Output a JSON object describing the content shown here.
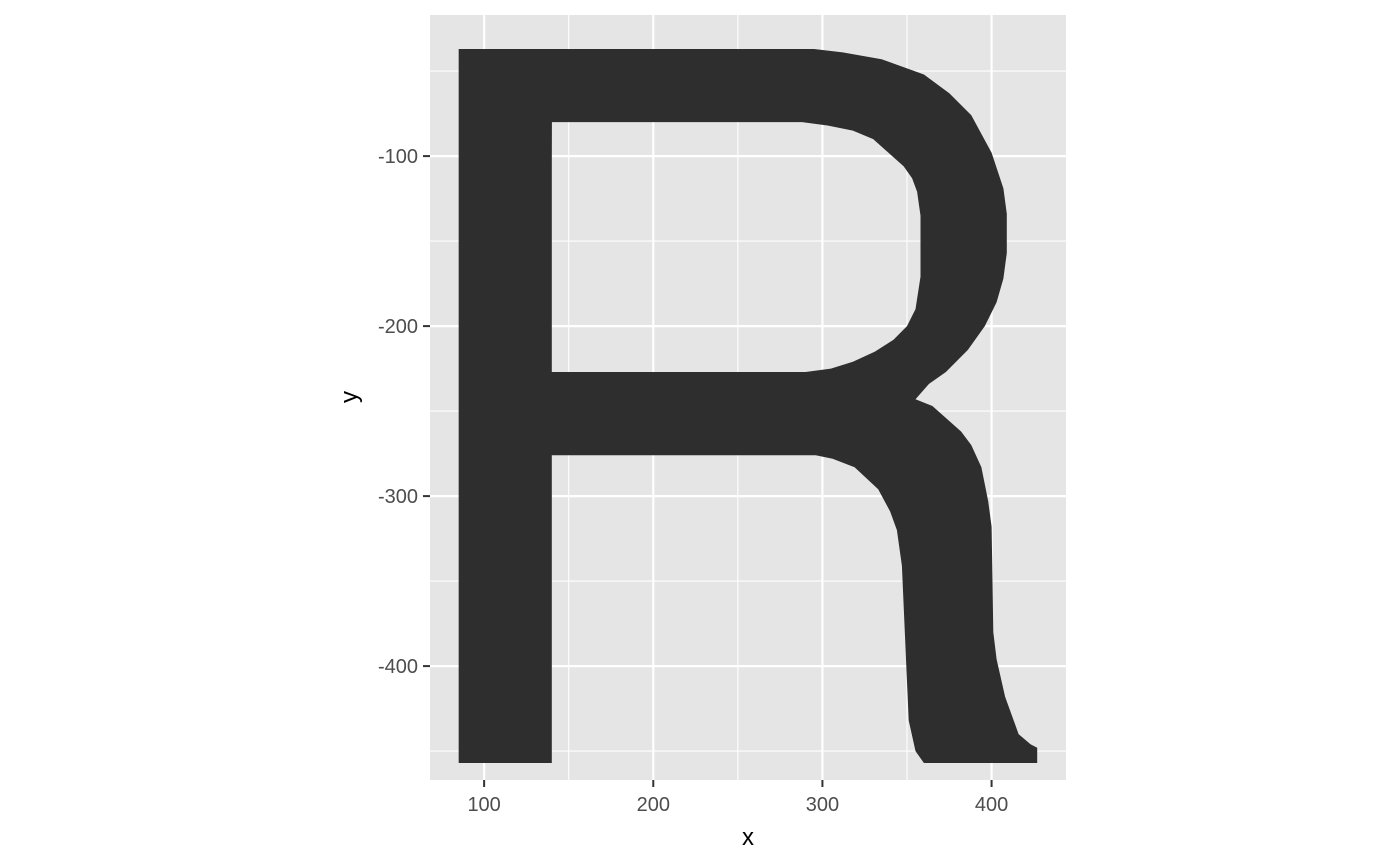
{
  "chart_data": {
    "type": "polygon",
    "xlabel": "x",
    "ylabel": "y",
    "xlim": [
      68,
      444
    ],
    "ylim": [
      -467,
      -17
    ],
    "x_ticks": [
      100,
      200,
      300,
      400
    ],
    "x_tick_labels": [
      "100",
      "200",
      "300",
      "400"
    ],
    "y_ticks": [
      -100,
      -200,
      -300,
      -400
    ],
    "y_tick_labels": [
      "-100",
      "-200",
      "-300",
      "-400"
    ],
    "grid": true,
    "legend": "none",
    "colors": {
      "panel_background": "#e5e5e5",
      "grid_line": "#ffffff",
      "fill": "#2e2e2e",
      "tick_text": "#4d4d4d",
      "tick_mark": "#333333"
    },
    "outer_polygon": [
      [
        85,
        -37
      ],
      [
        295,
        -37
      ],
      [
        312,
        -39
      ],
      [
        335,
        -43
      ],
      [
        360,
        -52
      ],
      [
        375,
        -63
      ],
      [
        388,
        -76
      ],
      [
        400,
        -98
      ],
      [
        407,
        -119
      ],
      [
        409,
        -134
      ],
      [
        409,
        -157
      ],
      [
        407,
        -172
      ],
      [
        403,
        -186
      ],
      [
        396,
        -200
      ],
      [
        386,
        -214
      ],
      [
        373,
        -227
      ],
      [
        363,
        -234
      ],
      [
        355,
        -243
      ],
      [
        365,
        -247
      ],
      [
        382,
        -262
      ],
      [
        388,
        -270
      ],
      [
        394,
        -283
      ],
      [
        398,
        -303
      ],
      [
        400,
        -318
      ],
      [
        401,
        -380
      ],
      [
        403,
        -396
      ],
      [
        408,
        -418
      ],
      [
        416,
        -440
      ],
      [
        423,
        -446
      ],
      [
        427,
        -448
      ],
      [
        427,
        -457
      ],
      [
        360,
        -457
      ],
      [
        355,
        -450
      ],
      [
        351,
        -432
      ],
      [
        347,
        -341
      ],
      [
        344,
        -320
      ],
      [
        340,
        -309
      ],
      [
        333,
        -296
      ],
      [
        319,
        -283
      ],
      [
        306,
        -278
      ],
      [
        296,
        -276
      ],
      [
        90,
        -276
      ],
      [
        90,
        -457
      ],
      [
        85,
        -457
      ]
    ],
    "holes": [
      [
        [
          140,
          -80
        ],
        [
          288,
          -80
        ],
        [
          303,
          -82
        ],
        [
          318,
          -85
        ],
        [
          330,
          -90
        ],
        [
          348,
          -106
        ],
        [
          353,
          -113
        ],
        [
          356,
          -121
        ],
        [
          358,
          -135
        ],
        [
          358,
          -171
        ],
        [
          355,
          -190
        ],
        [
          350,
          -200
        ],
        [
          342,
          -208
        ],
        [
          331,
          -215
        ],
        [
          318,
          -221
        ],
        [
          305,
          -225
        ],
        [
          290,
          -227
        ],
        [
          139,
          -227
        ],
        [
          140,
          -80
        ]
      ]
    ],
    "stem_hole_fix": [
      [
        85,
        -37
      ],
      [
        140,
        -37
      ],
      [
        140,
        -457
      ],
      [
        85,
        -457
      ]
    ]
  }
}
